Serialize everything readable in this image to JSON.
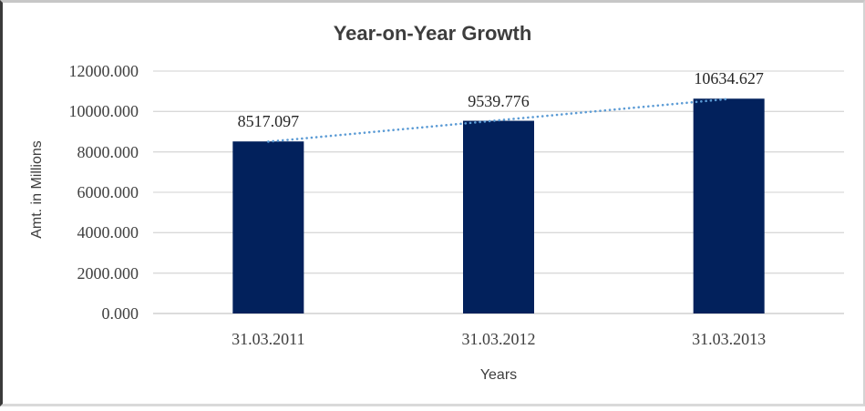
{
  "chart_data": {
    "type": "bar",
    "title": "Year-on-Year Growth",
    "xlabel": "Years",
    "ylabel": "Amt. in Millions",
    "categories": [
      "31.03.2011",
      "31.03.2012",
      "31.03.2013"
    ],
    "values": [
      8517.097,
      9539.776,
      10634.627
    ],
    "data_labels": [
      "8517.097",
      "9539.776",
      "10634.627"
    ],
    "ylim": [
      0,
      12000
    ],
    "ytick_step": 2000,
    "ytick_labels": [
      "0.000",
      "2000.000",
      "4000.000",
      "6000.000",
      "8000.000",
      "10000.000",
      "12000.000"
    ],
    "grid": true,
    "legend": false,
    "trendline": "linear-dotted",
    "colors": {
      "bar": "#02215C",
      "grid": "#D9D9D9",
      "axis": "#C6C6C6",
      "trend": "#5B9BD5",
      "text": "#3F3F3F",
      "title": "#3D3D3D"
    }
  }
}
